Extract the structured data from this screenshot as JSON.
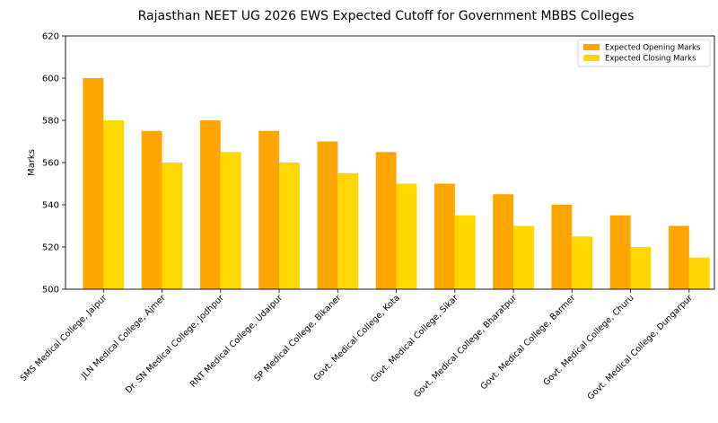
{
  "chart_data": {
    "type": "bar",
    "title": "Rajasthan NEET UG 2026 EWS Expected Cutoff for Government MBBS Colleges",
    "xlabel": "",
    "ylabel": "Marks",
    "ylim": [
      500,
      620
    ],
    "yticks": [
      "500",
      "520",
      "540",
      "560",
      "580",
      "600",
      "620"
    ],
    "grid": false,
    "legend_position": "top-right",
    "categories": [
      "SMS Medical College, Jaipur",
      "JLN Medical College, Ajmer",
      "Dr. SN Medical College, Jodhpur",
      "RNT Medical College, Udaipur",
      "SP Medical College, Bikaner",
      "Govt. Medical College, Kota",
      "Govt. Medical College, Sikar",
      "Govt. Medical College, Bharatpur",
      "Govt. Medical College, Barmer",
      "Govt. Medical College, Churu",
      "Govt. Medical College, Dungarpur"
    ],
    "series": [
      {
        "name": "Expected Opening Marks",
        "color": "#FFA500",
        "values": [
          600,
          575,
          580,
          575,
          570,
          565,
          550,
          545,
          540,
          535,
          530
        ]
      },
      {
        "name": "Expected Closing Marks",
        "color": "#FFD700",
        "values": [
          580,
          560,
          565,
          560,
          555,
          550,
          535,
          530,
          525,
          520,
          515
        ]
      }
    ]
  }
}
